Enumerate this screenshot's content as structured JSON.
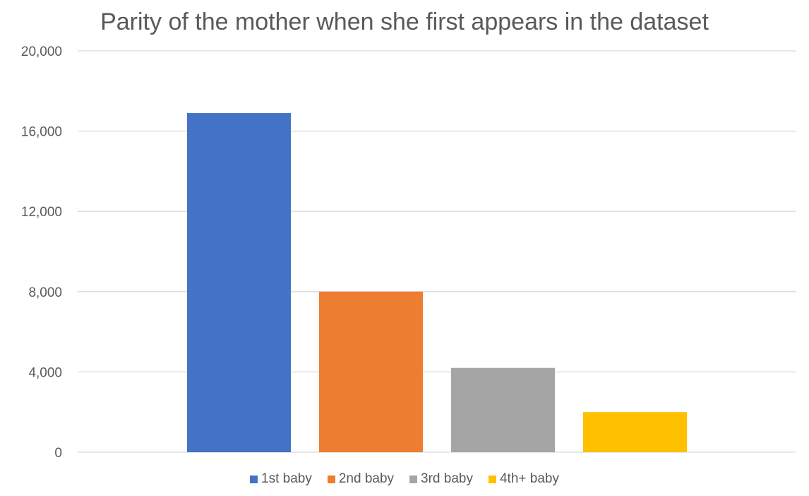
{
  "chart_data": {
    "type": "bar",
    "title": "Parity of the mother when she first appears in the dataset",
    "series": [
      {
        "name": "1st baby",
        "value": 16900,
        "color": "#4472C4"
      },
      {
        "name": "2nd baby",
        "value": 8000,
        "color": "#ED7D31"
      },
      {
        "name": "3rd baby",
        "value": 4200,
        "color": "#A5A5A5"
      },
      {
        "name": "4th+ baby",
        "value": 2000,
        "color": "#FFC000"
      }
    ],
    "yticks": [
      "0",
      "4,000",
      "8,000",
      "12,000",
      "16,000",
      "20,000"
    ],
    "ylim": [
      0,
      20000
    ],
    "grid": true,
    "legend_position": "bottom"
  }
}
